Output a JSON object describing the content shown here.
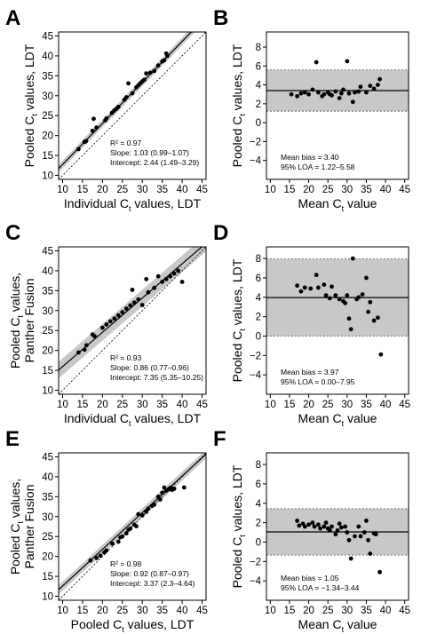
{
  "chart_data": [
    {
      "panel": "A",
      "type": "scatter",
      "xlabel": {
        "pre": "Individual C",
        "sub": "t",
        "post": " values, LDT"
      },
      "ylabel": [
        {
          "pre": "Pooled C",
          "sub": "t",
          "post": " values, LDT"
        }
      ],
      "xlim": [
        9,
        46
      ],
      "ylim": [
        9,
        46
      ],
      "xticks": [
        10,
        15,
        20,
        25,
        30,
        35,
        40,
        45
      ],
      "yticks": [
        10,
        15,
        20,
        25,
        30,
        35,
        40,
        45
      ],
      "fit": {
        "slope": 1.03,
        "intercept": 2.44,
        "band": 0.6
      },
      "stats": [
        "R² = 0.97",
        "Slope: 1.03 (0.99–1.07)",
        "Intercept: 2.44 (1.49–3.29)"
      ],
      "points": [
        [
          14,
          16.6
        ],
        [
          15.5,
          18.4
        ],
        [
          15.9,
          18.6
        ],
        [
          17.5,
          21.2
        ],
        [
          17.8,
          24.2
        ],
        [
          18.5,
          22.0
        ],
        [
          20.7,
          23.8
        ],
        [
          21,
          24.3
        ],
        [
          22.4,
          25.7
        ],
        [
          23,
          26.3
        ],
        [
          23.5,
          26.7
        ],
        [
          24,
          27.2
        ],
        [
          25.5,
          29.0
        ],
        [
          26,
          29.6
        ],
        [
          26.5,
          33.1
        ],
        [
          27.5,
          30.6
        ],
        [
          28.5,
          32.1
        ],
        [
          29,
          32.6
        ],
        [
          29.5,
          33.1
        ],
        [
          30,
          33.6
        ],
        [
          30.5,
          34.0
        ],
        [
          31,
          35.6
        ],
        [
          32,
          35.8
        ],
        [
          33,
          36.2
        ],
        [
          34,
          37.6
        ],
        [
          35,
          38.6
        ],
        [
          35.5,
          38.9
        ],
        [
          36,
          40.6
        ],
        [
          36.3,
          40.0
        ]
      ]
    },
    {
      "panel": "B",
      "type": "scatter",
      "xlabel": {
        "pre": "Mean C",
        "sub": "t",
        "post": " value"
      },
      "ylabel": [
        {
          "pre": "Pooled C",
          "sub": "t",
          "post": " values, LDT"
        }
      ],
      "xlim": [
        9,
        46
      ],
      "ylim": [
        -6,
        9.6
      ],
      "xticks": [
        10,
        15,
        20,
        25,
        30,
        35,
        40,
        45
      ],
      "yticks": [
        -4,
        -2,
        0,
        2,
        4,
        6,
        8
      ],
      "bias": 3.4,
      "loa": [
        1.22,
        5.58
      ],
      "stats": [
        "Mean bias = 3.40",
        "95% LOA = 1.22–5.58"
      ],
      "points": [
        [
          15.5,
          3.0
        ],
        [
          17,
          2.8
        ],
        [
          18,
          3.1
        ],
        [
          19,
          3.2
        ],
        [
          20,
          3.0
        ],
        [
          21,
          3.5
        ],
        [
          22,
          6.4
        ],
        [
          22.5,
          3.2
        ],
        [
          23.5,
          2.8
        ],
        [
          24,
          3.0
        ],
        [
          25,
          3.2
        ],
        [
          25.5,
          3.0
        ],
        [
          26,
          2.9
        ],
        [
          27,
          3.3
        ],
        [
          28,
          2.6
        ],
        [
          28.5,
          3.1
        ],
        [
          29,
          3.5
        ],
        [
          30,
          6.5
        ],
        [
          30.5,
          3.1
        ],
        [
          31.5,
          2.2
        ],
        [
          32,
          3.2
        ],
        [
          33,
          3.3
        ],
        [
          33.5,
          3.8
        ],
        [
          35,
          3.2
        ],
        [
          36,
          3.9
        ],
        [
          37,
          3.6
        ],
        [
          38,
          4.0
        ],
        [
          38.5,
          4.6
        ]
      ]
    },
    {
      "panel": "C",
      "type": "scatter",
      "xlabel": {
        "pre": "Individual C",
        "sub": "t",
        "post": " values, LDT"
      },
      "ylabel": [
        {
          "pre": "Pooled C",
          "sub": "t",
          "post": " values,"
        },
        {
          "pre": "Panther Fusion",
          "sub": "",
          "post": ""
        }
      ],
      "xlim": [
        9,
        46
      ],
      "ylim": [
        9,
        46
      ],
      "xticks": [
        10,
        15,
        20,
        25,
        30,
        35,
        40,
        45
      ],
      "yticks": [
        10,
        15,
        20,
        25,
        30,
        35,
        40,
        45
      ],
      "fit": {
        "slope": 0.86,
        "intercept": 7.35,
        "band": 1.3
      },
      "stats": [
        "R² = 0.93",
        "Slope: 0.86 (0.77–0.96)",
        "Intercept: 7.35 (5.35–10.25)"
      ],
      "points": [
        [
          14,
          19.5
        ],
        [
          15.5,
          20.2
        ],
        [
          16,
          21.3
        ],
        [
          17.5,
          24.0
        ],
        [
          18,
          23.6
        ],
        [
          20,
          25.7
        ],
        [
          21,
          26.5
        ],
        [
          22,
          27.3
        ],
        [
          23,
          28.0
        ],
        [
          24,
          28.8
        ],
        [
          25,
          29.6
        ],
        [
          26,
          30.5
        ],
        [
          27,
          31.3
        ],
        [
          27.5,
          35.2
        ],
        [
          28,
          32.0
        ],
        [
          29,
          32.8
        ],
        [
          30,
          31.4
        ],
        [
          31,
          37.9
        ],
        [
          31.5,
          34.6
        ],
        [
          33,
          35.7
        ],
        [
          34,
          38.6
        ],
        [
          35,
          37.2
        ],
        [
          36,
          37.9
        ],
        [
          37,
          38.6
        ],
        [
          38,
          39.3
        ],
        [
          39,
          40.0
        ],
        [
          40,
          37.2
        ]
      ]
    },
    {
      "panel": "D",
      "type": "scatter",
      "xlabel": {
        "pre": "Mean C",
        "sub": "t",
        "post": " value"
      },
      "ylabel": [
        {
          "pre": "Pooled C",
          "sub": "t",
          "post": " values, LDT"
        }
      ],
      "xlim": [
        9,
        46
      ],
      "ylim": [
        -6,
        9.2
      ],
      "xticks": [
        10,
        15,
        20,
        25,
        30,
        35,
        40,
        45
      ],
      "yticks": [
        -4,
        -2,
        0,
        2,
        4,
        6,
        8
      ],
      "bias": 3.97,
      "loa": [
        0.0,
        7.95
      ],
      "stats": [
        "Mean bias = 3.97",
        "95% LOA = 0.00–7.95"
      ],
      "points": [
        [
          17,
          5.2
        ],
        [
          18,
          4.6
        ],
        [
          19,
          5.0
        ],
        [
          20.5,
          4.9
        ],
        [
          22,
          6.3
        ],
        [
          22.5,
          5.0
        ],
        [
          24,
          5.3
        ],
        [
          24.5,
          4.2
        ],
        [
          25.5,
          3.9
        ],
        [
          26,
          5.1
        ],
        [
          27,
          4.2
        ],
        [
          28,
          3.8
        ],
        [
          29,
          3.6
        ],
        [
          29.5,
          3.4
        ],
        [
          30,
          4.2
        ],
        [
          30.5,
          1.8
        ],
        [
          31,
          0.7
        ],
        [
          31.5,
          8.0
        ],
        [
          32.5,
          3.8
        ],
        [
          33,
          4.0
        ],
        [
          34,
          4.3
        ],
        [
          35,
          6.0
        ],
        [
          35.5,
          2.5
        ],
        [
          36,
          3.5
        ],
        [
          37,
          1.6
        ],
        [
          38,
          1.9
        ],
        [
          38.8,
          -1.9
        ]
      ]
    },
    {
      "panel": "E",
      "type": "scatter",
      "xlabel": {
        "pre": "Pooled C",
        "sub": "t",
        "post": " values, LDT"
      },
      "ylabel": [
        {
          "pre": "Pooled C",
          "sub": "t",
          "post": " values,"
        },
        {
          "pre": "Panther Fusion",
          "sub": "",
          "post": ""
        }
      ],
      "xlim": [
        9,
        46
      ],
      "ylim": [
        9,
        46
      ],
      "xticks": [
        10,
        15,
        20,
        25,
        30,
        35,
        40,
        45
      ],
      "yticks": [
        10,
        15,
        20,
        25,
        30,
        35,
        40,
        45
      ],
      "fit": {
        "slope": 0.92,
        "intercept": 3.37,
        "band": 0.7
      },
      "stats": [
        "R² = 0.98",
        "Slope: 0.92 (0.87–0.97)",
        "Intercept: 3.37 (2.3–4.64)"
      ],
      "points": [
        [
          17,
          19.0
        ],
        [
          18.5,
          19.6
        ],
        [
          19.5,
          20.2
        ],
        [
          20.5,
          21.0
        ],
        [
          21,
          21.5
        ],
        [
          22.5,
          23.2
        ],
        [
          24,
          23.7
        ],
        [
          24.5,
          24.8
        ],
        [
          25,
          25.0
        ],
        [
          26,
          25.8
        ],
        [
          26.5,
          26.7
        ],
        [
          27,
          27.0
        ],
        [
          28,
          28.0
        ],
        [
          28.5,
          27.6
        ],
        [
          29,
          30.6
        ],
        [
          30,
          30.3
        ],
        [
          31,
          31.2
        ],
        [
          31.5,
          32.0
        ],
        [
          32.5,
          32.7
        ],
        [
          33,
          33.0
        ],
        [
          34,
          35.0
        ],
        [
          34.5,
          34.3
        ],
        [
          35,
          36.0
        ],
        [
          35.5,
          37.3
        ],
        [
          36,
          36.5
        ],
        [
          36.5,
          36.8
        ],
        [
          37,
          37.2
        ],
        [
          37.5,
          36.7
        ],
        [
          38,
          37.0
        ],
        [
          40.5,
          37.3
        ]
      ]
    },
    {
      "panel": "F",
      "type": "scatter",
      "xlabel": {
        "pre": "Mean C",
        "sub": "t",
        "post": " value"
      },
      "ylabel": [
        {
          "pre": "Pooled C",
          "sub": "t",
          "post": " values, LDT"
        }
      ],
      "xlim": [
        9,
        46
      ],
      "ylim": [
        -6,
        9.2
      ],
      "xticks": [
        10,
        15,
        20,
        25,
        30,
        35,
        40,
        45
      ],
      "yticks": [
        -4,
        -2,
        0,
        2,
        4,
        6,
        8
      ],
      "bias": 1.05,
      "loa": [
        -1.34,
        3.44
      ],
      "stats": [
        "Mean bias = 1.05",
        "95% LOA = −1.34–3.44"
      ],
      "points": [
        [
          17,
          2.2
        ],
        [
          17.5,
          1.7
        ],
        [
          18.5,
          1.9
        ],
        [
          19,
          1.6
        ],
        [
          20,
          1.8
        ],
        [
          21,
          2.0
        ],
        [
          21.5,
          1.6
        ],
        [
          22.5,
          1.8
        ],
        [
          23,
          1.4
        ],
        [
          24,
          1.6
        ],
        [
          24.5,
          2.0
        ],
        [
          25,
          1.4
        ],
        [
          25.5,
          1.2
        ],
        [
          26,
          1.6
        ],
        [
          27,
          0.8
        ],
        [
          27.5,
          1.2
        ],
        [
          28,
          1.9
        ],
        [
          28.5,
          1.5
        ],
        [
          29.5,
          1.6
        ],
        [
          30,
          1.0
        ],
        [
          30.5,
          0.2
        ],
        [
          31,
          -1.7
        ],
        [
          32,
          0.6
        ],
        [
          33,
          1.6
        ],
        [
          33.5,
          0.6
        ],
        [
          34.5,
          1.0
        ],
        [
          35,
          2.2
        ],
        [
          35.5,
          0.2
        ],
        [
          36,
          -1.2
        ],
        [
          37,
          0.9
        ],
        [
          37.5,
          0.8
        ],
        [
          38.5,
          -3.1
        ]
      ]
    }
  ]
}
